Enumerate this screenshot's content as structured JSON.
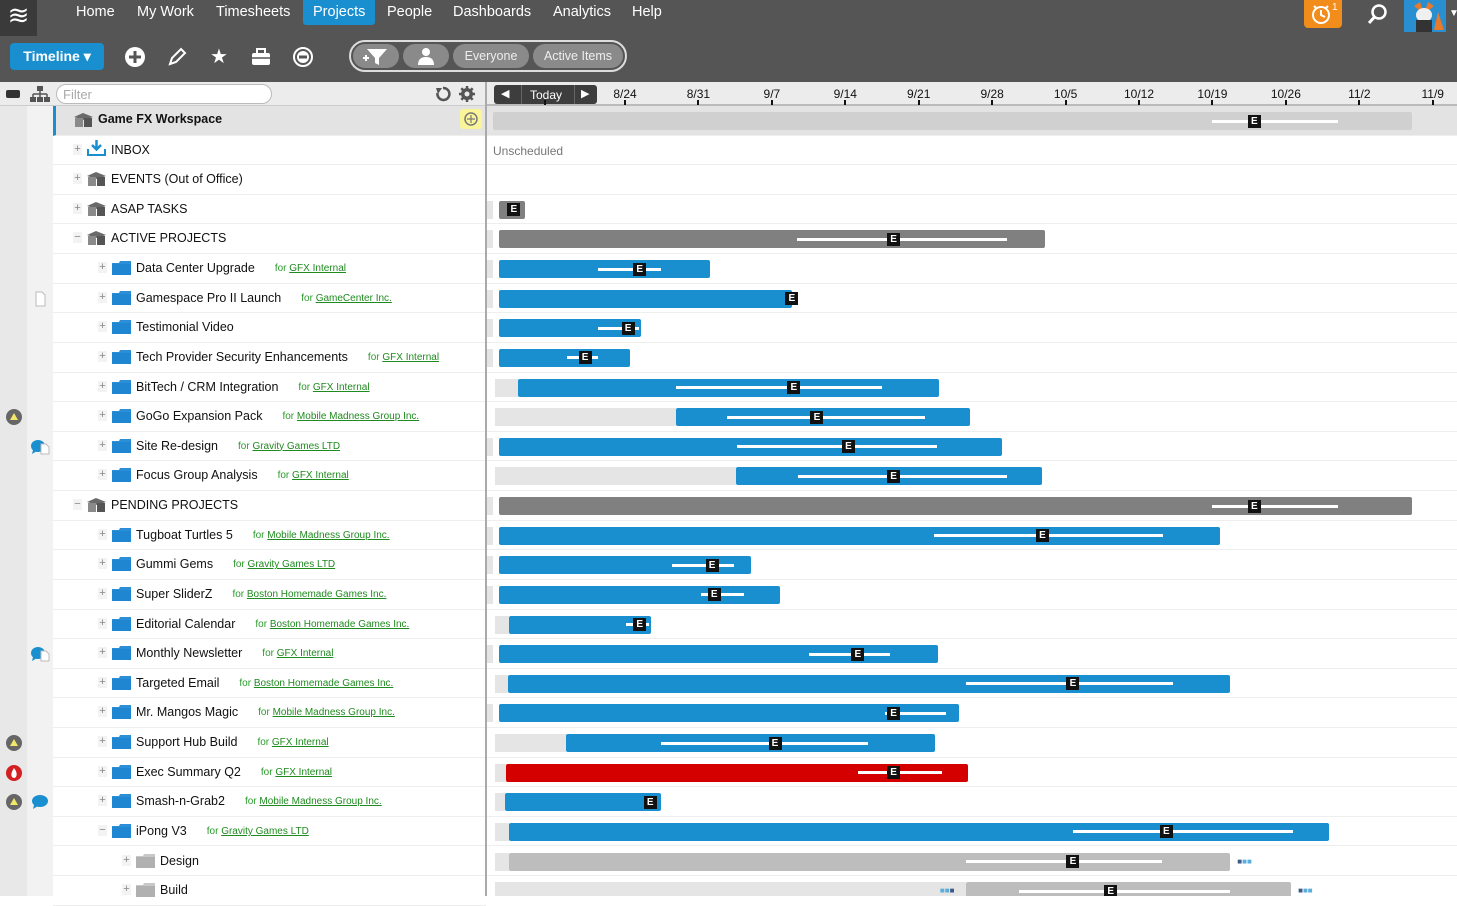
{
  "nav": {
    "items": [
      "Home",
      "My Work",
      "Timesheets",
      "Projects",
      "People",
      "Dashboards",
      "Analytics",
      "Help"
    ],
    "active": "Projects",
    "alarm_count": "1",
    "brand_color": "#1a8fcf",
    "alarm_color": "#f28c1b"
  },
  "toolbar": {
    "view_label": "Timeline ▾",
    "icons": [
      "add-icon",
      "pencil-icon",
      "star-icon",
      "briefcase-icon",
      "minus-circle-icon"
    ],
    "filter_everyone": "Everyone",
    "filter_active": "Active Items"
  },
  "tree_header": {
    "filter_placeholder": "Filter"
  },
  "timeline": {
    "today_label": "Today",
    "ticks": [
      "8/24",
      "8/31",
      "9/7",
      "9/14",
      "9/21",
      "9/28",
      "10/5",
      "10/12",
      "10/19",
      "10/26",
      "11/2",
      "11/9"
    ],
    "unscheduled_label": "Unscheduled",
    "colors": {
      "project": "#1a8fcf",
      "group": "#808080",
      "workspace": "#d0d0d0",
      "late": "#d40000",
      "phase": "#bdbdbd"
    }
  },
  "rows": [
    {
      "type": "workspace",
      "name": "Game FX Workspace",
      "level": 0,
      "bar": {
        "start": -18,
        "end": 75,
        "color": "workspace",
        "eline": [
          56,
          68
        ],
        "emark": 60
      }
    },
    {
      "type": "inbox",
      "name": "INBOX",
      "level": 1,
      "toggle": "+",
      "unscheduled": true
    },
    {
      "type": "group",
      "name": "EVENTS (Out of Office)",
      "level": 1,
      "toggle": "+"
    },
    {
      "type": "group",
      "name": "ASAP TASKS",
      "level": 1,
      "toggle": "+",
      "bar": {
        "start": -12,
        "end": -9.5,
        "color": "group",
        "emark": -10.6
      }
    },
    {
      "type": "group",
      "name": "ACTIVE PROJECTS",
      "level": 1,
      "toggle": "−",
      "bar": {
        "start": -12,
        "end": 40,
        "color": "group",
        "eline": [
          16.4,
          36.4
        ],
        "emark": 25.6
      }
    },
    {
      "type": "project",
      "name": "Data Center Upgrade",
      "client": "GFX Internal",
      "level": 2,
      "toggle": "+",
      "bar": {
        "start": -12,
        "end": 8.1,
        "color": "project",
        "eline": [
          -2.6,
          3.4
        ],
        "emark": 1.4
      }
    },
    {
      "type": "project",
      "name": "Gamespace Pro II Launch",
      "client": "GameCenter Inc.",
      "level": 2,
      "toggle": "+",
      "gutter2": "doc",
      "bar": {
        "start": -12,
        "end": 15.9,
        "color": "project",
        "emark": 15.9
      }
    },
    {
      "type": "project",
      "name": "Testimonial Video",
      "level": 2,
      "toggle": "+",
      "bar": {
        "start": -12,
        "end": 1.5,
        "color": "project",
        "eline": [
          -2.6,
          1.3
        ],
        "emark": 0.3
      }
    },
    {
      "type": "project",
      "name": "Tech Provider Security Enhancements",
      "client": "GFX Internal",
      "level": 2,
      "toggle": "+",
      "bar": {
        "start": -12,
        "end": 0.5,
        "color": "project",
        "eline": [
          -5.5,
          -2.6
        ],
        "emark": -3.8
      }
    },
    {
      "type": "project",
      "name": "BitTech / CRM Integration",
      "client": "GFX Internal",
      "level": 2,
      "toggle": "+",
      "bar": {
        "pre": -12.4,
        "start": -10.2,
        "end": 29.9,
        "color": "project",
        "eline": [
          4.9,
          24.5
        ],
        "emark": 16.1
      }
    },
    {
      "type": "project",
      "name": "GoGo Expansion Pack",
      "client": "Mobile Madness Group Inc.",
      "level": 2,
      "toggle": "+",
      "gutter1": "warning",
      "bar": {
        "pre": -12.4,
        "start": 4.9,
        "end": 32.9,
        "color": "project",
        "eline": [
          9.7,
          28.6
        ],
        "emark": 18.3
      }
    },
    {
      "type": "project",
      "name": "Site Re-design",
      "client": "Gravity Games LTD",
      "level": 2,
      "toggle": "+",
      "gutter2": "comment-doc",
      "bar": {
        "start": -12,
        "end": 35.9,
        "color": "project",
        "eline": [
          10.7,
          29.7
        ],
        "emark": 21.3
      }
    },
    {
      "type": "project",
      "name": "Focus Group Analysis",
      "client": "GFX Internal",
      "level": 2,
      "toggle": "+",
      "bar": {
        "pre": -12.4,
        "start": 10.6,
        "end": 39.8,
        "color": "project",
        "eline": [
          16.5,
          36.4
        ],
        "emark": 25.6
      }
    },
    {
      "type": "group",
      "name": "PENDING PROJECTS",
      "level": 1,
      "toggle": "−",
      "bar": {
        "start": -12,
        "end": 75,
        "color": "group",
        "eline": [
          56,
          68
        ],
        "emark": 60
      }
    },
    {
      "type": "project",
      "name": "Tugboat Turtles 5",
      "client": "Mobile Madness Group Inc.",
      "level": 2,
      "toggle": "+",
      "bar": {
        "start": -12,
        "end": 56.7,
        "color": "project",
        "eline": [
          29.5,
          51.3
        ],
        "emark": 39.8
      }
    },
    {
      "type": "project",
      "name": "Gummi Gems",
      "client": "Gravity Games LTD",
      "level": 2,
      "toggle": "+",
      "bar": {
        "start": -12,
        "end": 12,
        "color": "project",
        "eline": [
          4.5,
          10.4
        ],
        "emark": 8.3
      }
    },
    {
      "type": "project",
      "name": "Super SliderZ",
      "client": "Boston Homemade Games Inc.",
      "level": 2,
      "toggle": "+",
      "bar": {
        "start": -12,
        "end": 14.8,
        "color": "project",
        "eline": [
          7.2,
          11.3
        ],
        "emark": 8.5
      }
    },
    {
      "type": "project",
      "name": "Editorial Calendar",
      "client": "Boston Homemade Games Inc.",
      "level": 2,
      "toggle": "+",
      "bar": {
        "pre": -12.4,
        "start": -11.1,
        "end": 2.5,
        "color": "project",
        "eline": [
          0.1,
          2.3
        ],
        "emark": 1.4
      }
    },
    {
      "type": "project",
      "name": "Monthly Newsletter",
      "client": "GFX Internal",
      "level": 2,
      "toggle": "+",
      "gutter2": "comment-doc",
      "bar": {
        "start": -12,
        "end": 29.8,
        "color": "project",
        "eline": [
          17.5,
          25.3
        ],
        "emark": 22.2
      }
    },
    {
      "type": "project",
      "name": "Targeted Email",
      "client": "Boston Homemade Games Inc.",
      "level": 2,
      "toggle": "+",
      "bar": {
        "pre": -12.4,
        "start": -11.2,
        "end": 57.7,
        "color": "project",
        "eline": [
          32.5,
          52.2
        ],
        "emark": 42.7
      }
    },
    {
      "type": "project",
      "name": "Mr. Mangos Magic",
      "client": "Mobile Madness Group Inc.",
      "level": 2,
      "toggle": "+",
      "bar": {
        "start": -12,
        "end": 31.8,
        "color": "project",
        "eline": [
          24.8,
          30.6
        ],
        "emark": 25.6
      }
    },
    {
      "type": "project",
      "name": "Support Hub Build",
      "client": "GFX Internal",
      "level": 2,
      "toggle": "+",
      "gutter1": "warning",
      "bar": {
        "pre": -12.4,
        "start": -5.6,
        "end": 29.6,
        "color": "project",
        "eline": [
          3.4,
          23.2
        ],
        "emark": 14.3
      }
    },
    {
      "type": "project",
      "name": "Exec Summary Q2",
      "client": "GFX Internal",
      "level": 2,
      "toggle": "+",
      "gutter1": "fire",
      "bar": {
        "pre": -12.4,
        "start": -11.3,
        "end": 32.7,
        "color": "late",
        "eline": [
          22.2,
          30.2
        ],
        "emark": 25.6
      }
    },
    {
      "type": "project",
      "name": "Smash-n-Grab2",
      "client": "Mobile Madness Group Inc.",
      "level": 2,
      "toggle": "+",
      "gutter1": "warning",
      "gutter2": "comment",
      "bar": {
        "pre": -12.4,
        "start": -11.4,
        "end": 3.4,
        "color": "project",
        "emark": 2.4
      }
    },
    {
      "type": "project",
      "name": "iPong V3",
      "client": "Gravity Games LTD",
      "level": 2,
      "toggle": "−",
      "bar": {
        "pre": -12.4,
        "start": -11.1,
        "end": 67.1,
        "color": "project",
        "eline": [
          42.7,
          63.7
        ],
        "emark": 51.6
      }
    },
    {
      "type": "phase",
      "name": "Design",
      "level": 3,
      "toggle": "+",
      "bar": {
        "pre": -12.4,
        "start": -11.1,
        "end": 57.7,
        "color": "phase",
        "eline": [
          32.5,
          51.2
        ],
        "emark": 42.7,
        "dots_after": true
      }
    },
    {
      "type": "phase",
      "name": "Build",
      "level": 3,
      "toggle": "+",
      "bar": {
        "pre": -12.4,
        "start": 32.5,
        "end": 63.5,
        "color": "phase",
        "eline": [
          37.6,
          57.7
        ],
        "emark": 46.3,
        "dots_before": true,
        "dots_after": true
      }
    }
  ]
}
